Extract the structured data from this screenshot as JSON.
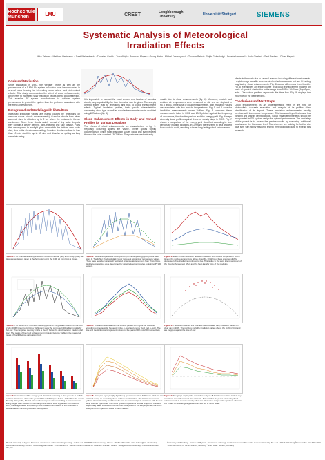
{
  "header": {
    "logos": [
      "Hochschule München",
      "LMU",
      "CREST",
      "Loughborough University",
      "Universität Stuttgart",
      "",
      "SIEMENS"
    ],
    "title_line1": "Systematic Analysis of Meteorological",
    "title_line2": "Irradiation Effects",
    "authors": "Mike Zehner¹ · Matthias Hartmann¹ · Josef Weizenbeck¹ · Thorsten Gratzl¹ · Tom Weigl¹ · Bernhard Mayer² · Georg Wirth³ · Michal Krawczynski⁴ · Thomas Betts⁴ · Ralph Gottschalg⁴ · Annette Hammer⁵ · Bodo Giesler⁶ · Gerd Becker¹ · Oliver Mayer⁶"
  },
  "columns": {
    "c1": [
      {
        "h": "Goals and Motivation",
        "p": "Since installation in 1997, the weather profile as well as the performance of a 1 MW PV system in Munich have been recorded in several sites leading to interesting observations and determined effects. This study demonstrates the effect of cloud enhancements, which refer to increased solar irradiation values due to cloud reflection. This enables PV system manufacturers to optimize system performance to protect the system from the problems associated with the effect analysed here."
      },
      {
        "h": "Background and Modeling with libRadtran",
        "p": "Increased irradiation values are mainly caused by reflections on cumulus clouds (clouds enhancements). Cumulus clouds form when warm air rises to altitudes up to 2 km where the moisture in the air condenses. Since these clouds mainly consist of tiny water droplets they contain a clearly defined, light-reflecting and fully opaque. Parts that are exposed to sunlight glow clear while the bottom area looks dark, due to the clouds own shading. Cumulus clouds can form in less than 10 min, dwell for up to 30 min, and dissolve as quickly as they come into being."
      }
    ],
    "c2": [
      {
        "h": "",
        "p": "It is impossible to forecast the exact amount and location of cumulus clouds, only a probability for their formation can be given. The sharply defined edges lead to reflections and thus to cloud enhancement effects. Typical irradiation profiles, their specific characteristics concerning cloud type as well as cloud enhancements can be modeled using libRadtran (fig. 4)."
      },
      {
        "h": "Cloud Enhancement Effects in Daily and Annual Profiles for Various Locations",
        "p": "The effects of cloud enhancements are characterised in fig. 1. Regularly occurring spikes are visible. These spikes signify occurrences in which solar irradiation values equal and even exceed those of the solar constant 1367 W/m². The peaks are predominantly"
      }
    ],
    "c3": [
      {
        "h": "",
        "p": "mantly due to cloud enhancements (fig. 4). Moreover, module and ambient air temperatures were measured on site and are depicted in fig. 2 and 3. In the case of cloud enhancements, high irradiance values are associated with low module temperatures. Fig. 5 and 6 consider irradiation measurements above 1kW/m². Fig. 5 compares these measurements taken in 2008 and 2009 plotted against the frequency of occurrence, the duration periods and the energy yield. Fig. 6 maps clear-sky local profiles against those of cloudy days in 2009. Fig. 7 shows a comparison of the energy yield classified according to time periods for multiple locations. In Germany there seems to be a gradient from south to north, resulting in fewer long-lasting cloud enhancement"
      }
    ],
    "c4": [
      {
        "h": "",
        "p": "effects in the north due to several reasons including different wind speeds. Loughborough benefits from lots of cloud enhancements but few GI lasting long lasting cloud enhancements. Fig. 8 shows differences from Munich. Fig. 8 exemplifies an entire course of a cloud enhancement incident on basis of spectral distribution in the range from 585 to 1640 nm (AgroSpec, tech). The colour gradient represents the time flow. Fig. 9 displays the influence on the wave lengths."
      },
      {
        "h": "Conclusions and Next Steps",
        "p": "Cloud enhancements is an underestimated effect in the field of photovoltaic. Accurate evaluation and analysis of its profiles allow identification of its impact. These irradiation enhancements usually correlate with low module temperature. This is caused by reflections at low hanging and sharply defined clouds. Cloud enhancement effects should be incorporated in PV system design for optimal performance. The next step of this project is to assess the precise results by evaluating additional locations on the European level. Therefore we are looking for further site data sets with highly resolved energy meteorological data to extend this research."
      }
    ]
  },
  "figures": [
    {
      "label": "Figure 1:",
      "caption": "The chart depicts daily irradiation values on a clear (red) and cloudy (blue) day. Measurements were taken at the horizontal using the CMP 21 from Kipp & Zonen."
    },
    {
      "label": "Figure 2:",
      "caption": "Module temperatures corresponding to the daily energy yield profile as in figure 1. The lighter shades of dark colour represent ambient air temperature values. These were recorded using well ventilated air temperature sensors from Theis Klima. Module temperatures were determined by using reference modules containing PT100 sensors."
    },
    {
      "label": "Figure 3:",
      "caption": "Effect of low correlation between irradiation and module temperature. At the time of the module temperature above about 60–70 W/m² or there are over slightly decreased while irradiance continues to rise. This is due to the short intensive impact of the cloud enhancement effect and the heat-transfer time of the modules."
    },
    {
      "label": "Figure 4:",
      "caption": "The black curve illustrates the daily profile of the global irradiation on the 28th of May 2008. Green to light grey (light grey) show the computed (libRadtran) profile for that day. The computed clearsky profile is clearly below the direct radiation fraction (dark blue). The peaks of the cloud enhancement incidents become visible in the measured values of the libRadtran calculation (red)."
    },
    {
      "label": "Figure 5:",
      "caption": "Irradiation values above the 1kW/m² plotted from figure 5a, classified according to time periods, frequency (blue, y-axis) and energy yield (red, y-axis). The blue and the dark colours represent values for the years 2008 and 2009 respectively."
    },
    {
      "label": "Figure 6:",
      "caption": "The bottom dashed line indicates the calculated daily irradiation values of a clear day in 2009. The red dots mark the irradiation values above the 1kW/m² limit and are mapped against the time of day."
    },
    {
      "label": "Figure 7:",
      "caption": "Comparison of the energy yield classified according to time periods at multiple locations. It includes data of the years 2008 and 2009 (see below). Other than the classic (Munich) data profile, Munich has much lower peak values resulting in more incidents lasting longer than 300 sec. In Germany there seems to be a gradient from south to north, resulting in fewer long-lasting cloud enhancement effects in the north due to several reasons including different wind speeds."
    },
    {
      "label": "Figure 8:",
      "caption": "Using the Agrolytec (by AgroSpec) spectrometer from 585 nm to 1640 nm was captured during an exemplary cloud enhancement incident. The first measurement (yellow) shows clear sky conditions; the last measurement (red) was taken with the sun being covered by a cloud. The colour gradient represents several snapshots that were sequentially taken in between. As the time flows (violet to the sun) especially the short-wave part of the spectrum starts to be increased."
    },
    {
      "label": "Figure 9:",
      "caption": "The graph displays the correlation to figure 8, this time in relation to clear sky conditions and with constant time intervals. It shows that the peaks caused by cloud enhancements in modern country where the short-wave range of the spectrum whereas the impact on wavelengths greater than 900 nm is rather weak."
    }
  ],
  "footer": {
    "left": "¹Munich University of Applied Sciences · Department of Electrical Engineering · Lothstr. 64 · 80335 Munich, Germany · Phone: +49 89 1265 3426 · mike.zehner@hm.edu ²Ludwig-Maximilians-University Munich · Meteorological Institute · Theresienstr. 37 · 80333 Munich ³Institute for Nonlinear Science · CREST · Loughborough University · Leicestershire LE11 3TU, UK",
    "right": "⁴University of Oldenburg · Institute of Physics · Department of Energy and Semiconductor Research · Carl-von-Ossietzky-Str. 9-11 · 26129 Oldenburg ⁵Siemens AG · CT T DE HW1 · Otto-Hahn-Ring 6 · 81739 Munich, Germany ⁶Wirth Solar · Munich, Germany"
  },
  "colors": {
    "accent": "#a31418",
    "stripe": "#c21417"
  }
}
